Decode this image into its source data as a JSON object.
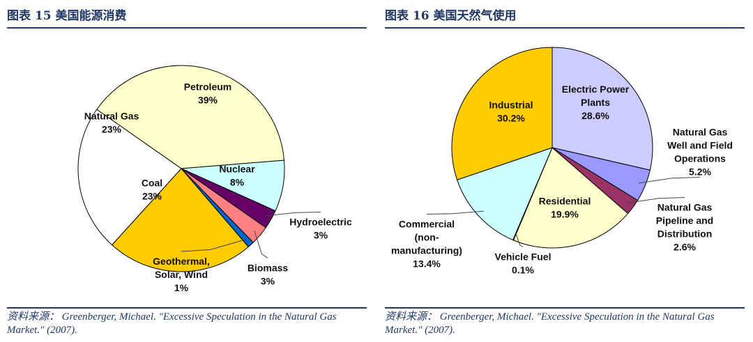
{
  "chart_data": [
    {
      "type": "pie",
      "title": "图表 15 美国能源消费",
      "source": "资料来源： Greenberger, Michael. \"Excessive Speculation in the Natural Gas Market.\" (2007).",
      "slices": [
        {
          "name": "Petroleum",
          "value": 39,
          "label": [
            "Petroleum",
            "39%"
          ],
          "color": "#ffffcc"
        },
        {
          "name": "Nuclear",
          "value": 8,
          "label": [
            "Nuclear",
            "8%"
          ],
          "color": "#ccffff"
        },
        {
          "name": "Hydroelectric",
          "value": 3,
          "label": [
            "Hydroelectric",
            "3%"
          ],
          "color": "#660066"
        },
        {
          "name": "Biomass",
          "value": 3,
          "label": [
            "Biomass",
            "3%"
          ],
          "color": "#ff8080"
        },
        {
          "name": "Geothermal, Solar, Wind",
          "value": 1,
          "label": [
            "Geothermal,",
            "Solar, Wind",
            "1%"
          ],
          "color": "#0066cc"
        },
        {
          "name": "Coal",
          "value": 23,
          "label": [
            "Coal",
            "23%"
          ],
          "color": "#ffcc00"
        },
        {
          "name": "Natural Gas",
          "value": 23,
          "label": [
            "Natural Gas",
            "23%"
          ],
          "color": "#ffffff"
        }
      ]
    },
    {
      "type": "pie",
      "title": "图表 16 美国天然气使用",
      "source": "资料来源： Greenberger, Michael. \"Excessive Speculation in the Natural Gas Market.\" (2007).",
      "slices": [
        {
          "name": "Electric Power Plants",
          "value": 28.6,
          "label": [
            "Electric Power",
            "Plants",
            "28.6%"
          ],
          "color": "#ccccff"
        },
        {
          "name": "Natural Gas Well and Field Operations",
          "value": 5.2,
          "label": [
            "Natural Gas",
            "Well and Field",
            "Operations",
            "5.2%"
          ],
          "color": "#9999ff"
        },
        {
          "name": "Natural Gas Pipeline and Distribution",
          "value": 2.6,
          "label": [
            "Natural Gas",
            "Pipeline and",
            "Distribution",
            "2.6%"
          ],
          "color": "#993366"
        },
        {
          "name": "Residential",
          "value": 19.9,
          "label": [
            "Residential",
            "19.9%"
          ],
          "color": "#ffffcc"
        },
        {
          "name": "Vehicle Fuel",
          "value": 0.1,
          "label": [
            "Vehicle Fuel",
            "0.1%"
          ],
          "color": "#ffffff"
        },
        {
          "name": "Commercial (non-manufacturing)",
          "value": 13.4,
          "label": [
            "Commercial",
            "(non-",
            "manufacturing)",
            "13.4%"
          ],
          "color": "#ccffff"
        },
        {
          "name": "Industrial",
          "value": 30.2,
          "label": [
            "Industrial",
            "30.2%"
          ],
          "color": "#ffcc00"
        }
      ]
    }
  ]
}
